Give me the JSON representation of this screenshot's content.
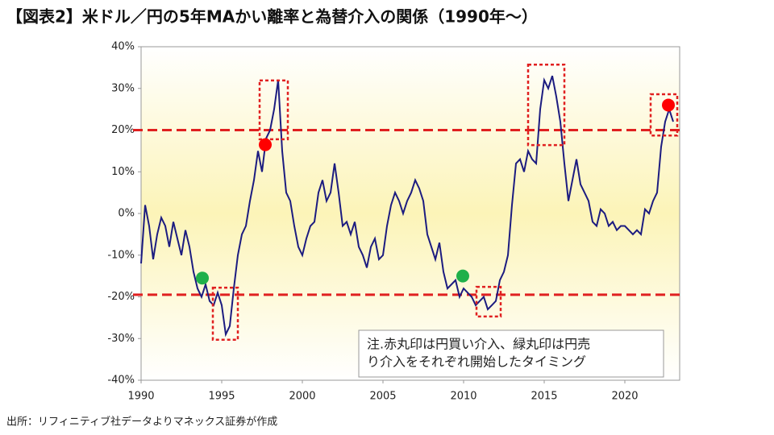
{
  "chart_data": {
    "type": "line",
    "title": "【図表2】米ドル／円の5年MAかい離率と為替介入の関係（1990年～）",
    "source": "出所：リフィニティブ社データよりマネックス証券が作成",
    "note": [
      "注.赤丸印は円買い介入、緑丸印は円売",
      "り介入をそれぞれ開始したタイミング"
    ],
    "xlim": [
      1990,
      2023.4
    ],
    "xticks": [
      1990,
      1995,
      2000,
      2005,
      2010,
      2015,
      2020
    ],
    "ylim": [
      -40,
      40
    ],
    "yticks": [
      {
        "value": 40,
        "label": "40%"
      },
      {
        "value": 30,
        "label": "30%"
      },
      {
        "value": 20,
        "label": "20%"
      },
      {
        "value": 10,
        "label": "10%"
      },
      {
        "value": 0,
        "label": "0%"
      },
      {
        "value": -10,
        "label": "-10%"
      },
      {
        "value": -20,
        "label": "-20%"
      },
      {
        "value": -30,
        "label": "-30%"
      },
      {
        "value": -40,
        "label": "-40%"
      }
    ],
    "negative_label_color": "#e02020",
    "reference_lines": [
      20,
      -19.5
    ],
    "reference_color": "#e02020",
    "highlight_boxes": [
      {
        "x": [
          1997.35,
          1999.1
        ],
        "y": [
          17.8,
          31.9
        ]
      },
      {
        "x": [
          1994.45,
          1996.0
        ],
        "y": [
          -30.3,
          -17.8
        ]
      },
      {
        "x": [
          2010.8,
          2012.3
        ],
        "y": [
          -24.7,
          -17.6
        ]
      },
      {
        "x": [
          2014.0,
          2016.25
        ],
        "y": [
          16.4,
          35.7
        ]
      },
      {
        "x": [
          2021.6,
          2023.25
        ],
        "y": [
          18.7,
          28.6
        ]
      }
    ],
    "markers": [
      {
        "x": 1997.7,
        "y": 16.5,
        "color": "#ff0000"
      },
      {
        "x": 2022.7,
        "y": 26,
        "color": "#ff0000"
      },
      {
        "x": 1993.8,
        "y": -15.5,
        "color": "#1fb04a"
      },
      {
        "x": 2009.95,
        "y": -15,
        "color": "#1fb04a"
      }
    ],
    "x": [
      1990,
      1990.25,
      1990.5,
      1990.75,
      1991,
      1991.25,
      1991.5,
      1991.75,
      1992,
      1992.25,
      1992.5,
      1992.75,
      1993,
      1993.25,
      1993.5,
      1993.75,
      1994,
      1994.25,
      1994.5,
      1994.75,
      1995,
      1995.25,
      1995.5,
      1995.75,
      1996,
      1996.25,
      1996.5,
      1996.75,
      1997,
      1997.25,
      1997.5,
      1997.75,
      1998,
      1998.25,
      1998.5,
      1998.75,
      1999,
      1999.25,
      1999.5,
      1999.75,
      2000,
      2000.25,
      2000.5,
      2000.75,
      2001,
      2001.25,
      2001.5,
      2001.75,
      2002,
      2002.25,
      2002.5,
      2002.75,
      2003,
      2003.25,
      2003.5,
      2003.75,
      2004,
      2004.25,
      2004.5,
      2004.75,
      2005,
      2005.25,
      2005.5,
      2005.75,
      2006,
      2006.25,
      2006.5,
      2006.75,
      2007,
      2007.25,
      2007.5,
      2007.75,
      2008,
      2008.25,
      2008.5,
      2008.75,
      2009,
      2009.25,
      2009.5,
      2009.75,
      2010,
      2010.25,
      2010.5,
      2010.75,
      2011,
      2011.25,
      2011.5,
      2011.75,
      2012,
      2012.25,
      2012.5,
      2012.75,
      2013,
      2013.25,
      2013.5,
      2013.75,
      2014,
      2014.25,
      2014.5,
      2014.75,
      2015,
      2015.25,
      2015.5,
      2015.75,
      2016,
      2016.25,
      2016.5,
      2016.75,
      2017,
      2017.25,
      2017.5,
      2017.75,
      2018,
      2018.25,
      2018.5,
      2018.75,
      2019,
      2019.25,
      2019.5,
      2019.75,
      2020,
      2020.25,
      2020.5,
      2020.75,
      2021,
      2021.25,
      2021.5,
      2021.75,
      2022,
      2022.25,
      2022.5,
      2022.75,
      2023
    ],
    "series": [
      {
        "color": "#1c1c80",
        "values": [
          -12,
          2,
          -3,
          -11,
          -5,
          -1,
          -3,
          -8,
          -2,
          -6,
          -10,
          -4,
          -8,
          -14,
          -18,
          -20,
          -17,
          -21,
          -22,
          -19,
          -22,
          -29,
          -27,
          -18,
          -10,
          -5,
          -3,
          3,
          8,
          15,
          10,
          18,
          20,
          25,
          32,
          15,
          5,
          3,
          -3,
          -8,
          -10,
          -6,
          -3,
          -2,
          5,
          8,
          3,
          5,
          12,
          5,
          -3,
          -2,
          -5,
          -2,
          -8,
          -10,
          -13,
          -8,
          -6,
          -11,
          -10,
          -3,
          2,
          5,
          3,
          0,
          3,
          5,
          8,
          6,
          3,
          -5,
          -8,
          -11,
          -7,
          -14,
          -18,
          -17,
          -16,
          -20,
          -18,
          -19,
          -20,
          -22,
          -21,
          -20,
          -23,
          -22,
          -21,
          -16,
          -14,
          -10,
          2,
          12,
          13,
          10,
          15,
          13,
          12,
          25,
          32,
          30,
          33,
          28,
          22,
          12,
          3,
          8,
          13,
          7,
          5,
          3,
          -2,
          -3,
          1,
          0,
          -3,
          -2,
          -4,
          -3,
          -3,
          -4,
          -5,
          -4,
          -5,
          1,
          0,
          3,
          5,
          16,
          22,
          25,
          22
        ]
      }
    ]
  }
}
